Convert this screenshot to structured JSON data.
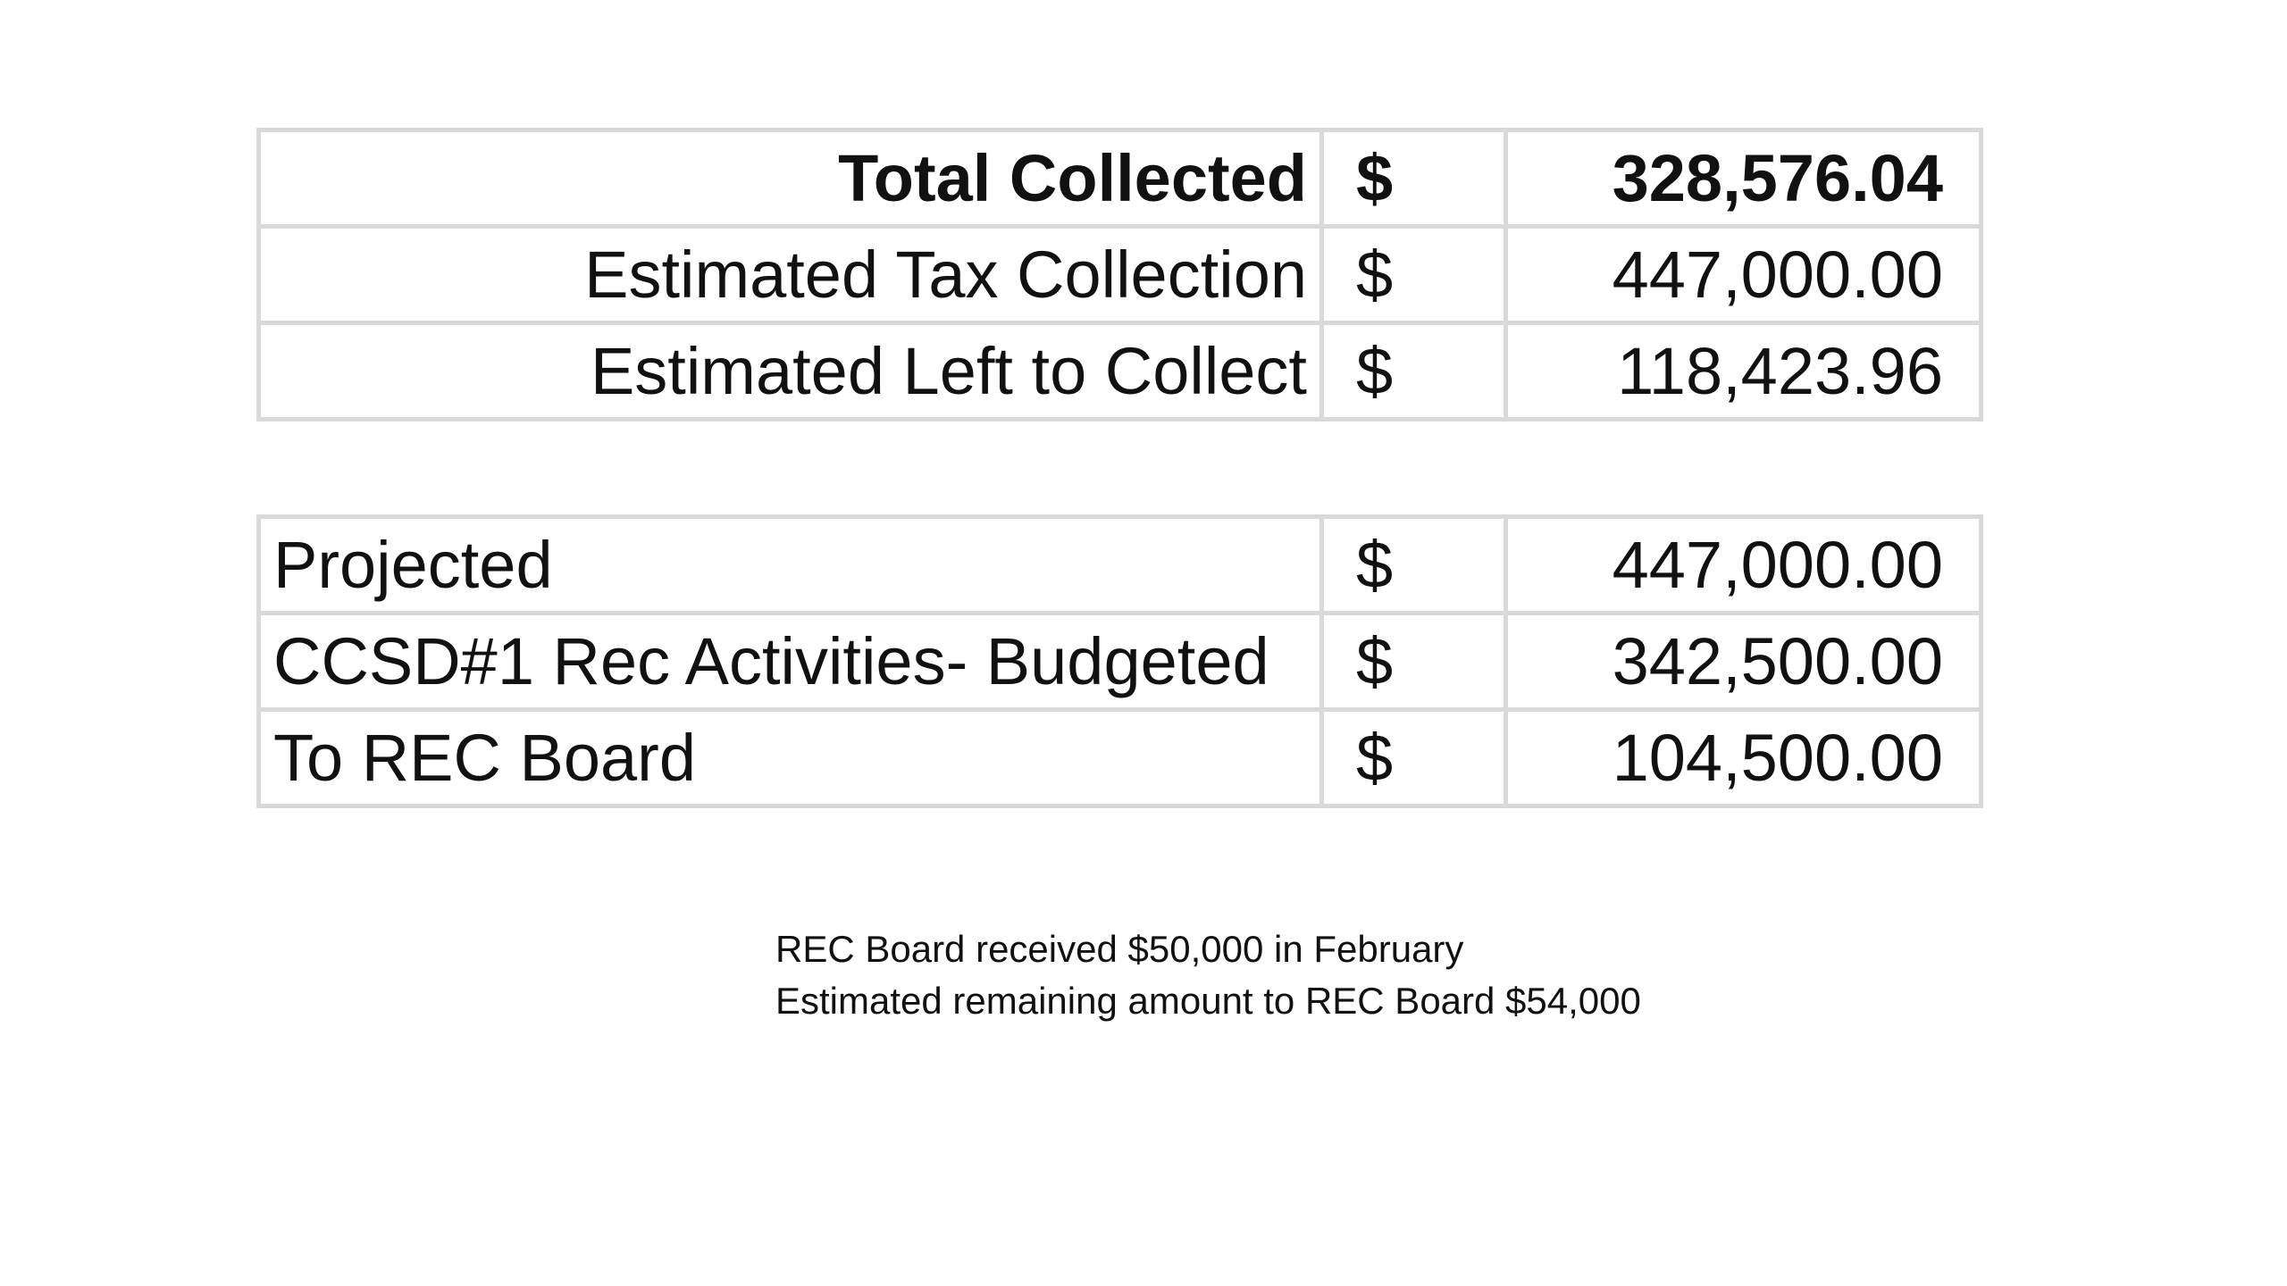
{
  "summary_table": {
    "rows": [
      {
        "label": "Total Collected",
        "currency": "$",
        "amount": "328,576.04"
      },
      {
        "label": "Estimated Tax Collection",
        "currency": "$",
        "amount": "447,000.00"
      },
      {
        "label": "Estimated Left to Collect",
        "currency": "$",
        "amount": "118,423.96"
      }
    ]
  },
  "budget_table": {
    "rows": [
      {
        "label": "Projected",
        "currency": "$",
        "amount": "447,000.00"
      },
      {
        "label": "CCSD#1 Rec Activities- Budgeted",
        "currency": "$",
        "amount": "342,500.00"
      },
      {
        "label": "To REC Board",
        "currency": "$",
        "amount": "104,500.00"
      }
    ]
  },
  "notes": [
    "REC Board received $50,000 in February",
    "Estimated remaining amount to REC Board $54,000"
  ]
}
